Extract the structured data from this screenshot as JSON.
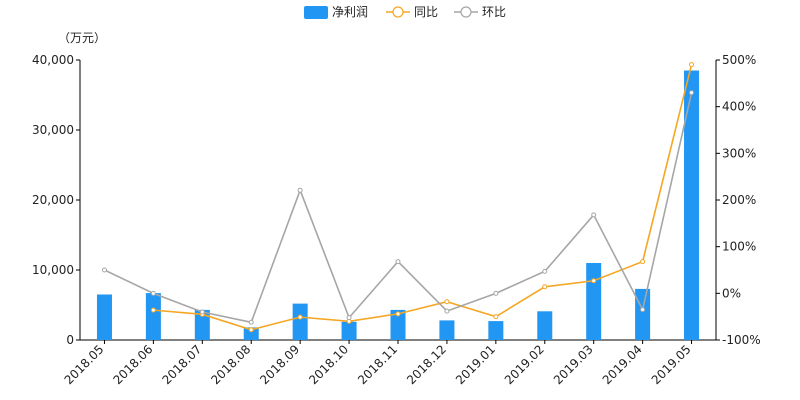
{
  "chart_data": {
    "type": "bar",
    "unit_label": "（万元）",
    "categories": [
      "2018.05",
      "2018.06",
      "2018.07",
      "2018.08",
      "2018.09",
      "2018.10",
      "2018.11",
      "2018.12",
      "2019.01",
      "2019.02",
      "2019.03",
      "2019.04",
      "2019.05"
    ],
    "series": [
      {
        "name": "净利润",
        "type": "bar",
        "axis": "left",
        "color": "#2196f3",
        "values": [
          6500,
          6700,
          4300,
          1800,
          5200,
          2600,
          4300,
          2800,
          2700,
          4100,
          11000,
          7300,
          38500
        ]
      },
      {
        "name": "同比",
        "type": "line",
        "axis": "right",
        "color": "#f5a623",
        "values": [
          null,
          -36,
          -45,
          -78,
          -51,
          -60,
          -44,
          -18,
          -50,
          14,
          27,
          68,
          490
        ]
      },
      {
        "name": "环比",
        "type": "line",
        "axis": "right",
        "color": "#a6a6a6",
        "values": [
          50,
          0,
          -40,
          -62,
          221,
          -52,
          68,
          -38,
          0,
          47,
          168,
          -35,
          430
        ]
      }
    ],
    "y_left": {
      "min": 0,
      "max": 40000,
      "ticks": [
        "0",
        "10,000",
        "20,000",
        "30,000",
        "40,000"
      ]
    },
    "y_right": {
      "min": -100,
      "max": 500,
      "ticks": [
        "-100%",
        "0%",
        "100%",
        "200%",
        "300%",
        "400%",
        "500%"
      ]
    },
    "grid": false,
    "legend_position": "top-center"
  }
}
